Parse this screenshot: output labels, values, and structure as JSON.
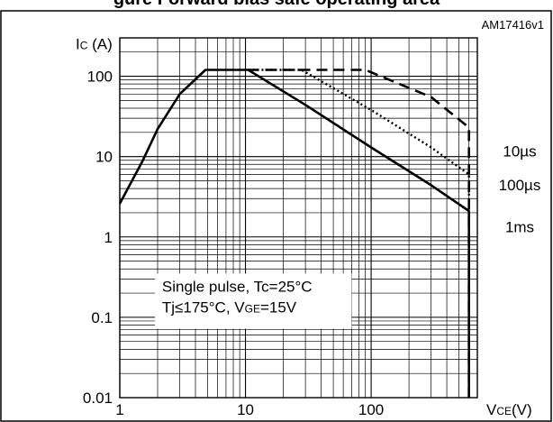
{
  "figure": {
    "title_fragment": "gure      Forward bias safe operating area",
    "figure_id": "AM17416v1"
  },
  "colors": {
    "line": "#000000",
    "grid": "#000000",
    "background": "#ffffff"
  },
  "chart_data": {
    "type": "line",
    "scale": "log-log",
    "grid": true,
    "xlabel": "V CE(V)",
    "xlabel_main": "V",
    "xlabel_sub": "CE",
    "xlabel_unit": "(V)",
    "ylabel_main": "I",
    "ylabel_sub": "C",
    "ylabel_unit": " (A)",
    "xlim": [
      1,
      700
    ],
    "ylim": [
      0.01,
      300
    ],
    "x_ticks": [
      1,
      10,
      100
    ],
    "x_tick_labels": [
      "1",
      "10",
      "100"
    ],
    "y_ticks": [
      0.01,
      0.1,
      1,
      10,
      100
    ],
    "y_tick_labels": [
      "0.01",
      "0.1",
      "1",
      "10",
      "100"
    ],
    "annotation_lines": [
      "Single pulse, Tc=25°C",
      "Tj≤175°C, V",
      "GE",
      "=15V"
    ],
    "series": [
      {
        "name": "1ms",
        "style": "solid",
        "points": [
          [
            1,
            2.6
          ],
          [
            1.5,
            8.5
          ],
          [
            2,
            22
          ],
          [
            3,
            60
          ],
          [
            4.8,
            120
          ],
          [
            10.5,
            120
          ],
          [
            30,
            44
          ],
          [
            100,
            13
          ],
          [
            300,
            4.4
          ],
          [
            600,
            2.1
          ],
          [
            600,
            0.01
          ]
        ]
      },
      {
        "name": "100µs",
        "style": "dotted",
        "points": [
          [
            10.5,
            120
          ],
          [
            28,
            120
          ],
          [
            100,
            38
          ],
          [
            300,
            13
          ],
          [
            600,
            6
          ],
          [
            600,
            0.01
          ]
        ]
      },
      {
        "name": "10µs",
        "style": "dashed",
        "points": [
          [
            10.5,
            120
          ],
          [
            90,
            120
          ],
          [
            300,
            55
          ],
          [
            600,
            23
          ],
          [
            600,
            0.01
          ]
        ]
      }
    ],
    "series_labels": [
      "10µs",
      "100µs",
      "1ms"
    ]
  }
}
